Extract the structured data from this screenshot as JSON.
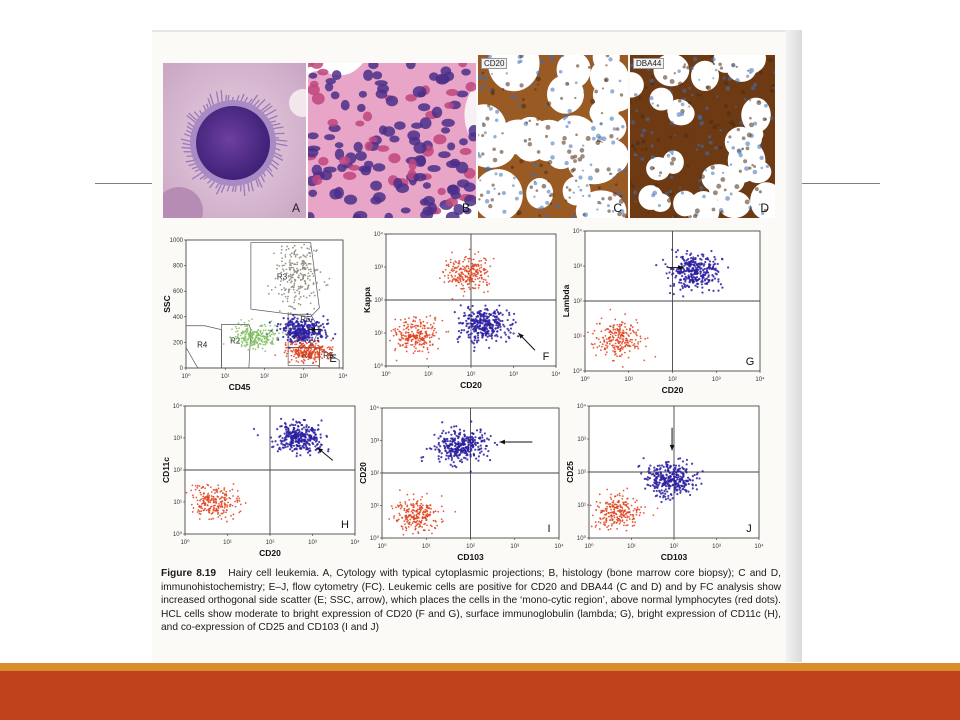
{
  "figure": {
    "panels_top": [
      {
        "letter": "A",
        "stain_label": ""
      },
      {
        "letter": "B",
        "stain_label": ""
      },
      {
        "letter": "C",
        "stain_label": "CD20"
      },
      {
        "letter": "D",
        "stain_label": "DBA44"
      }
    ],
    "caption": {
      "label": "Figure 8.19",
      "text": "Hairy cell leukemia. A, Cytology with typical cytoplasmic projections; B, histology (bone marrow core biopsy); C and D, immunohistochemistry; E–J, flow cytometry (FC). Leukemic cells are positive for CD20 and DBA44 (C and D) and by FC analysis show increased orthogonal side scatter (E; SSC, arrow), which places the cells in the ‘mono-cytic region’, above normal lymphocytes (red dots). HCL cells show moderate to bright expression of CD20 (F and G), surface immunoglobulin (lambda; G), bright expression of CD11c (H), and co-expression of CD25 and CD103 (I and J)"
    }
  },
  "chart_data": [
    {
      "type": "scatter",
      "panel": "E",
      "xlabel": "CD45",
      "ylabel": "SSC",
      "x_scale": "log",
      "xlim": [
        1,
        10000
      ],
      "x_ticks": [
        "10⁰",
        "10¹",
        "10²",
        "10³",
        "10⁴"
      ],
      "ylim": [
        0,
        1000
      ],
      "y_ticks": [
        "0",
        "200",
        "400",
        "600",
        "800",
        "1000"
      ],
      "regions": [
        "R1",
        "R2",
        "R3",
        "R4",
        "R5",
        "R6"
      ],
      "series": [
        {
          "color": "#8b8478",
          "center_x": 700,
          "center_y": 720
        },
        {
          "color": "#2a1fa0",
          "center_x": 900,
          "center_y": 290
        },
        {
          "color": "#e0401a",
          "center_x": 1300,
          "center_y": 130
        },
        {
          "color": "#7fbf5f",
          "center_x": 60,
          "center_y": 250
        }
      ],
      "annotation": "arrow"
    },
    {
      "type": "scatter",
      "panel": "F",
      "xlabel": "CD20",
      "ylabel": "Kappa",
      "x_scale": "log",
      "y_scale": "log",
      "xlim": [
        1,
        10000
      ],
      "ylim": [
        1,
        10000
      ],
      "x_ticks": [
        "10⁰",
        "10¹",
        "10²",
        "10³",
        "10⁴"
      ],
      "y_ticks": [
        "10⁰",
        "10¹",
        "10²",
        "10³",
        "10⁴"
      ],
      "series": [
        {
          "color": "#2a1fa0",
          "center_x": 200,
          "center_y": 18
        },
        {
          "color": "#e0401a",
          "center_x": 5,
          "center_y": 8
        },
        {
          "color": "#e0401a",
          "center_x": 80,
          "center_y": 600
        }
      ],
      "annotation": "arrow"
    },
    {
      "type": "scatter",
      "panel": "G",
      "xlabel": "CD20",
      "ylabel": "Lambda",
      "x_scale": "log",
      "y_scale": "log",
      "xlim": [
        1,
        10000
      ],
      "ylim": [
        1,
        10000
      ],
      "x_ticks": [
        "10⁰",
        "10¹",
        "10²",
        "10³",
        "10⁴"
      ],
      "y_ticks": [
        "10⁰",
        "10¹",
        "10²",
        "10³",
        "10⁴"
      ],
      "series": [
        {
          "color": "#2a1fa0",
          "center_x": 300,
          "center_y": 700
        },
        {
          "color": "#e0401a",
          "center_x": 6,
          "center_y": 8
        }
      ],
      "annotation": "arrow"
    },
    {
      "type": "scatter",
      "panel": "H",
      "xlabel": "CD20",
      "ylabel": "CD11c",
      "x_scale": "log",
      "y_scale": "log",
      "xlim": [
        1,
        10000
      ],
      "ylim": [
        1,
        10000
      ],
      "x_ticks": [
        "10⁰",
        "10¹",
        "10²",
        "10³",
        "10⁴"
      ],
      "y_ticks": [
        "10⁰",
        "10¹",
        "10²",
        "10³",
        "10⁴"
      ],
      "series": [
        {
          "color": "#2a1fa0",
          "center_x": 500,
          "center_y": 1000
        },
        {
          "color": "#e0401a",
          "center_x": 5,
          "center_y": 10
        }
      ],
      "annotation": "arrow"
    },
    {
      "type": "scatter",
      "panel": "I",
      "xlabel": "CD103",
      "ylabel": "CD20",
      "x_scale": "log",
      "y_scale": "log",
      "xlim": [
        1,
        10000
      ],
      "ylim": [
        1,
        10000
      ],
      "x_ticks": [
        "10⁰",
        "10¹",
        "10²",
        "10³",
        "10⁴"
      ],
      "y_ticks": [
        "10⁰",
        "10¹",
        "10²",
        "10³",
        "10⁴"
      ],
      "series": [
        {
          "color": "#2a1fa0",
          "center_x": 60,
          "center_y": 700
        },
        {
          "color": "#e0401a",
          "center_x": 6,
          "center_y": 5
        }
      ],
      "annotation": "arrow"
    },
    {
      "type": "scatter",
      "panel": "J",
      "xlabel": "CD103",
      "ylabel": "CD25",
      "x_scale": "log",
      "y_scale": "log",
      "xlim": [
        1,
        10000
      ],
      "ylim": [
        1,
        10000
      ],
      "x_ticks": [
        "10⁰",
        "10¹",
        "10²",
        "10³",
        "10⁴"
      ],
      "y_ticks": [
        "10⁰",
        "10¹",
        "10²",
        "10³",
        "10⁴"
      ],
      "series": [
        {
          "color": "#2a1fa0",
          "center_x": 80,
          "center_y": 60
        },
        {
          "color": "#e0401a",
          "center_x": 5,
          "center_y": 6
        }
      ],
      "annotation": "arrow"
    }
  ],
  "colors": {
    "slide_accent_orange": "#d98e2b",
    "slide_accent_red": "#c0421c",
    "hcl_blue": "#2a1fa0",
    "lymphocyte_red": "#e0401a"
  }
}
